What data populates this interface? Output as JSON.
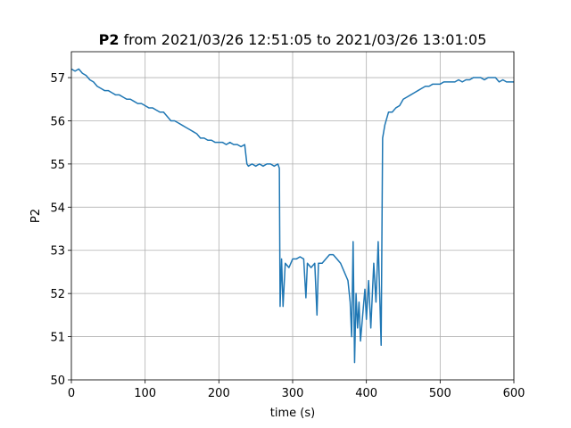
{
  "chart_data": {
    "type": "line",
    "title": {
      "variable": "P2",
      "range": "from 2021/03/26 12:51:05 to 2021/03/26 13:01:05"
    },
    "x_label": "time (s)",
    "y_label": "P2",
    "x": [
      0,
      5,
      10,
      15,
      20,
      25,
      30,
      35,
      40,
      45,
      50,
      55,
      60,
      65,
      70,
      75,
      80,
      85,
      90,
      95,
      100,
      105,
      110,
      115,
      120,
      125,
      130,
      135,
      140,
      145,
      150,
      155,
      160,
      165,
      170,
      175,
      180,
      185,
      190,
      195,
      200,
      205,
      210,
      215,
      220,
      225,
      230,
      235,
      238,
      240,
      245,
      250,
      255,
      260,
      265,
      270,
      275,
      280,
      282,
      283,
      285,
      287,
      290,
      295,
      300,
      305,
      310,
      315,
      318,
      320,
      325,
      330,
      333,
      335,
      340,
      345,
      350,
      355,
      360,
      365,
      370,
      375,
      378,
      380,
      382,
      384,
      386,
      388,
      390,
      392,
      395,
      398,
      400,
      403,
      406,
      410,
      413,
      416,
      418,
      420,
      422,
      425,
      430,
      435,
      440,
      445,
      450,
      455,
      460,
      465,
      470,
      475,
      480,
      485,
      490,
      495,
      500,
      505,
      510,
      515,
      520,
      525,
      530,
      535,
      540,
      545,
      550,
      555,
      560,
      565,
      570,
      575,
      580,
      585,
      590,
      595,
      600
    ],
    "series": [
      {
        "name": "P2",
        "color": "#1f77b4",
        "values": [
          57.2,
          57.15,
          57.2,
          57.1,
          57.05,
          56.95,
          56.9,
          56.8,
          56.75,
          56.7,
          56.7,
          56.65,
          56.6,
          56.6,
          56.55,
          56.5,
          56.5,
          56.45,
          56.4,
          56.4,
          56.35,
          56.3,
          56.3,
          56.25,
          56.2,
          56.2,
          56.1,
          56.0,
          56.0,
          55.95,
          55.9,
          55.85,
          55.8,
          55.75,
          55.7,
          55.6,
          55.6,
          55.55,
          55.55,
          55.5,
          55.5,
          55.5,
          55.45,
          55.5,
          55.45,
          55.45,
          55.4,
          55.45,
          55.0,
          54.95,
          55.0,
          54.95,
          55.0,
          54.95,
          55.0,
          55.0,
          54.95,
          55.0,
          54.9,
          51.7,
          52.8,
          51.7,
          52.7,
          52.6,
          52.8,
          52.8,
          52.85,
          52.8,
          51.9,
          52.7,
          52.6,
          52.7,
          51.5,
          52.7,
          52.7,
          52.8,
          52.9,
          52.9,
          52.8,
          52.7,
          52.5,
          52.3,
          51.8,
          51.0,
          53.2,
          50.4,
          52.0,
          51.2,
          51.8,
          50.9,
          51.5,
          52.1,
          51.4,
          52.3,
          51.2,
          52.7,
          51.8,
          53.2,
          52.0,
          50.8,
          55.6,
          55.9,
          56.2,
          56.2,
          56.3,
          56.35,
          56.5,
          56.55,
          56.6,
          56.65,
          56.7,
          56.75,
          56.8,
          56.8,
          56.85,
          56.85,
          56.85,
          56.9,
          56.9,
          56.9,
          56.9,
          56.95,
          56.9,
          56.95,
          56.95,
          57.0,
          57.0,
          57.0,
          56.95,
          57.0,
          57.0,
          57.0,
          56.9,
          56.95,
          56.9,
          56.9,
          56.9
        ]
      }
    ],
    "xlim": [
      0,
      600
    ],
    "xticks": [
      0,
      100,
      200,
      300,
      400,
      500,
      600
    ],
    "ylim": [
      50,
      57.6
    ],
    "yticks": [
      50,
      51,
      52,
      53,
      54,
      55,
      56,
      57
    ],
    "grid": true
  }
}
